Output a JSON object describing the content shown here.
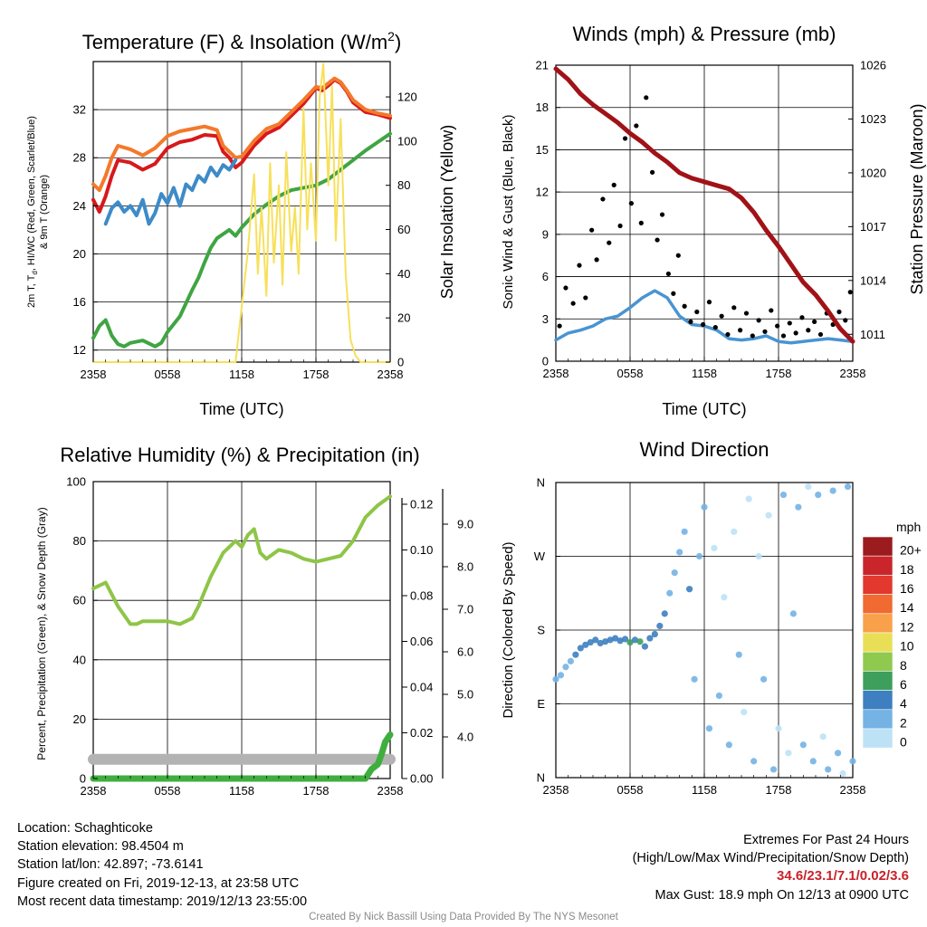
{
  "panels": {
    "temperature": {
      "title": "Temperature (F) & Insolation (W/m",
      "title_sup": "2",
      "title_close": ")",
      "ylabel_lines": [
        "2m T, T",
        "d",
        ", HI/WC (Red, Green, Scarlet/Blue)",
        "& 9m T (Orange)"
      ],
      "y2label": "Solar Insolation (Yellow)",
      "xlabel": "Time (UTC)"
    },
    "winds": {
      "title": "Winds (mph) & Pressure (mb)",
      "ylabel": "Sonic Wind & Gust (Blue, Black)",
      "y2label": "Station Pressure (Maroon)",
      "xlabel": "Time (UTC)"
    },
    "humidity": {
      "title": "Relative Humidity (%) & Precipitation (in)",
      "ylabel": "Percent, Precipitation (Green), & Snow Depth (Gray)"
    },
    "direction": {
      "title": "Wind Direction",
      "ylabel": "Direction (Colored By Speed)",
      "colorbar_title": "mph"
    }
  },
  "colors": {
    "temp_2m": "#d7191c",
    "temp_9m": "#f4792b",
    "dewpoint": "#3fa542",
    "windchill": "#3d8bc8",
    "insolation": "#f7e05a",
    "wind": "#4a94d2",
    "gust": "#000000",
    "pressure": "#a11217",
    "rh": "#8ec547",
    "precip": "#3fae3f",
    "snow": "#b3b3b3"
  },
  "chart_data": [
    {
      "type": "line",
      "id": "temperature",
      "x_ticks": [
        "2358",
        "0558",
        "1158",
        "1758",
        "2358"
      ],
      "x_hours": [
        0,
        24
      ],
      "ylim": [
        11,
        36
      ],
      "y_ticks": [
        12,
        16,
        20,
        24,
        28,
        32
      ],
      "y2lim": [
        0,
        136
      ],
      "y2_ticks": [
        0,
        20,
        40,
        60,
        80,
        100,
        120
      ],
      "series": [
        {
          "key": "temp_2m",
          "axis": "y",
          "x": [
            0,
            0.5,
            1,
            1.5,
            2,
            3,
            4,
            5,
            6,
            7,
            8,
            9,
            10,
            10.5,
            11,
            11.5,
            12,
            13,
            14,
            15,
            16,
            17,
            18,
            18.5,
            19,
            19.5,
            20,
            20.5,
            21,
            22,
            23,
            24
          ],
          "y": [
            24.5,
            23.5,
            24.8,
            26.5,
            27.8,
            27.6,
            27.0,
            27.5,
            28.8,
            29.3,
            29.5,
            29.9,
            29.8,
            28.5,
            28.0,
            27.2,
            27.6,
            29.0,
            30.0,
            30.5,
            31.5,
            32.5,
            33.8,
            33.6,
            34.0,
            34.5,
            34.2,
            33.5,
            32.6,
            31.8,
            31.6,
            31.3
          ]
        },
        {
          "key": "temp_9m",
          "axis": "y",
          "x": [
            0,
            0.5,
            1,
            1.5,
            2,
            3,
            4,
            5,
            6,
            7,
            8,
            9,
            10,
            10.5,
            11,
            11.5,
            12,
            13,
            14,
            15,
            16,
            17,
            18,
            18.5,
            19,
            19.5,
            20,
            20.5,
            21,
            22,
            23,
            24
          ],
          "y": [
            25.8,
            25.3,
            26.5,
            28.0,
            29.0,
            28.7,
            28.2,
            28.8,
            29.8,
            30.2,
            30.4,
            30.6,
            30.3,
            29.0,
            28.5,
            28.0,
            28.1,
            29.4,
            30.4,
            30.8,
            31.8,
            32.8,
            33.9,
            33.8,
            34.2,
            34.6,
            34.3,
            33.6,
            32.8,
            32.0,
            31.7,
            31.5
          ]
        },
        {
          "key": "dewpoint",
          "axis": "y",
          "x": [
            0,
            0.5,
            1,
            1.5,
            2,
            2.5,
            3,
            4,
            5,
            5.5,
            6,
            7,
            8,
            8.5,
            9,
            9.5,
            10,
            11,
            11.5,
            12,
            13,
            14,
            15,
            16,
            17,
            18,
            19,
            20,
            21,
            22,
            23,
            24
          ],
          "y": [
            13.0,
            14.0,
            14.5,
            13.2,
            12.5,
            12.3,
            12.6,
            12.8,
            12.3,
            12.6,
            13.5,
            14.8,
            17.0,
            18.0,
            19.3,
            20.5,
            21.3,
            22.0,
            21.5,
            22.2,
            23.3,
            24.1,
            24.8,
            25.3,
            25.5,
            25.7,
            26.2,
            27.0,
            27.8,
            28.6,
            29.3,
            30.0
          ]
        },
        {
          "key": "windchill",
          "axis": "y",
          "x": [
            1,
            1.5,
            2,
            2.5,
            3,
            3.5,
            4,
            4.5,
            5,
            5.5,
            6,
            6.5,
            7,
            7.5,
            8,
            8.5,
            9,
            9.5,
            10,
            10.5,
            11,
            11.5
          ],
          "y": [
            22.5,
            23.8,
            24.3,
            23.5,
            24.0,
            23.2,
            24.5,
            22.5,
            23.4,
            25.0,
            24.2,
            25.5,
            24.0,
            25.8,
            25.3,
            26.5,
            26.0,
            27.2,
            26.5,
            27.4,
            27.0,
            27.8
          ]
        },
        {
          "key": "insolation",
          "axis": "y2",
          "x": [
            0,
            11.5,
            12,
            12.5,
            13,
            13.3,
            13.6,
            14,
            14.3,
            14.6,
            15,
            15.3,
            15.6,
            16,
            16.3,
            16.6,
            17,
            17.3,
            17.6,
            18,
            18.3,
            18.6,
            19,
            19.3,
            19.6,
            20,
            20.4,
            20.8,
            21.2,
            21.6,
            22,
            24
          ],
          "y": [
            0,
            0,
            25,
            50,
            85,
            40,
            70,
            30,
            90,
            45,
            80,
            35,
            95,
            50,
            70,
            40,
            115,
            60,
            90,
            55,
            120,
            135,
            80,
            125,
            55,
            110,
            40,
            10,
            3,
            0,
            0,
            0
          ]
        }
      ]
    },
    {
      "type": "scatter",
      "id": "winds",
      "x_ticks": [
        "2358",
        "0558",
        "1158",
        "1758",
        "2358"
      ],
      "x_hours": [
        0,
        24
      ],
      "ylim": [
        0,
        21
      ],
      "y_ticks": [
        0,
        3,
        6,
        9,
        12,
        15,
        18,
        21
      ],
      "y2lim": [
        1009.5,
        1026
      ],
      "y2_ticks": [
        1011,
        1014,
        1017,
        1020,
        1023,
        1026
      ],
      "series": [
        {
          "key": "wind",
          "axis": "y",
          "x": [
            0,
            1,
            2,
            3,
            4,
            5,
            6,
            7,
            8,
            9,
            10,
            11,
            12,
            13,
            14,
            15,
            16,
            17,
            18,
            19,
            20,
            21,
            22,
            23,
            24
          ],
          "y": [
            1.5,
            2.0,
            2.2,
            2.5,
            3.0,
            3.2,
            3.8,
            4.5,
            5.0,
            4.5,
            3.2,
            2.6,
            2.5,
            2.2,
            1.6,
            1.5,
            1.6,
            1.8,
            1.4,
            1.3,
            1.4,
            1.5,
            1.6,
            1.5,
            1.4
          ]
        },
        {
          "key": "gust",
          "axis": "y",
          "x": [
            0.3,
            0.8,
            1.4,
            1.9,
            2.4,
            2.9,
            3.3,
            3.8,
            4.3,
            4.7,
            5.2,
            5.6,
            6.1,
            6.5,
            6.9,
            7.3,
            7.8,
            8.2,
            8.6,
            9.1,
            9.5,
            9.9,
            10.4,
            10.9,
            11.4,
            11.9,
            12.4,
            12.9,
            13.4,
            13.9,
            14.4,
            14.9,
            15.4,
            15.9,
            16.4,
            16.9,
            17.4,
            17.9,
            18.4,
            18.9,
            19.4,
            19.9,
            20.4,
            20.9,
            21.4,
            21.9,
            22.4,
            22.9,
            23.4,
            23.8
          ],
          "y": [
            2.5,
            5.2,
            4.1,
            6.8,
            4.5,
            9.3,
            7.2,
            11.5,
            8.4,
            12.5,
            9.6,
            15.8,
            11.2,
            16.7,
            9.8,
            18.7,
            13.4,
            8.6,
            10.4,
            6.2,
            4.8,
            7.5,
            3.9,
            2.8,
            3.5,
            2.6,
            4.2,
            2.4,
            3.2,
            1.9,
            3.8,
            2.2,
            3.4,
            1.8,
            2.9,
            2.1,
            3.6,
            2.5,
            1.8,
            2.7,
            2.0,
            3.1,
            2.2,
            2.8,
            1.9,
            3.4,
            2.6,
            3.5,
            2.9,
            4.9
          ]
        },
        {
          "key": "pressure",
          "axis": "y2",
          "x": [
            0,
            1,
            2,
            3,
            4,
            5,
            6,
            7,
            8,
            9,
            10,
            11,
            12,
            13,
            14,
            15,
            16,
            17,
            18,
            19,
            20,
            21,
            22,
            23,
            24
          ],
          "y": [
            1025.8,
            1025.2,
            1024.4,
            1023.8,
            1023.3,
            1022.8,
            1022.2,
            1021.7,
            1021.1,
            1020.6,
            1020.0,
            1019.7,
            1019.5,
            1019.3,
            1019.1,
            1018.6,
            1017.8,
            1016.8,
            1015.9,
            1014.9,
            1013.9,
            1013.2,
            1012.3,
            1011.3,
            1010.6
          ]
        }
      ]
    },
    {
      "type": "line",
      "id": "humidity",
      "x_ticks": [
        "2358",
        "0558",
        "1158",
        "1758",
        "2358"
      ],
      "x_hours": [
        0,
        24
      ],
      "ylim": [
        0,
        100
      ],
      "y_ticks": [
        0,
        20,
        40,
        60,
        80,
        100
      ],
      "y2_ticks": [
        "0.00",
        "0.02",
        "0.04",
        "0.06",
        "0.08",
        "0.10",
        "0.12"
      ],
      "y3_ticks": [
        "4.0",
        "5.0",
        "6.0",
        "7.0",
        "8.0",
        "9.0"
      ],
      "series": [
        {
          "key": "rh",
          "axis": "y",
          "x": [
            0,
            0.5,
            1,
            1.5,
            2,
            2.5,
            3,
            3.5,
            4,
            5,
            6,
            7,
            8,
            8.5,
            9,
            9.5,
            10,
            10.5,
            11,
            11.5,
            12,
            12.5,
            13,
            13.5,
            14,
            15,
            16,
            17,
            18,
            19,
            20,
            21,
            22,
            23,
            24
          ],
          "y": [
            64,
            65,
            66,
            62,
            58,
            55,
            52,
            52,
            53,
            53,
            53,
            52,
            54,
            58,
            63,
            68,
            72,
            76,
            78,
            80,
            78,
            82,
            84,
            76,
            74,
            77,
            76,
            74,
            73,
            74,
            75,
            80,
            88,
            92,
            95
          ]
        },
        {
          "key": "snow",
          "axis": "y",
          "x": [
            0,
            2,
            4,
            6,
            8,
            10,
            12,
            14,
            16,
            18,
            20,
            21,
            22,
            23,
            24
          ],
          "y": [
            6.5,
            6.5,
            6.5,
            6.5,
            6.5,
            6.5,
            6.5,
            6.5,
            6.5,
            6.5,
            6.5,
            6.5,
            6.5,
            6.5,
            6.5
          ]
        },
        {
          "key": "precip",
          "axis": "y",
          "x": [
            0,
            18,
            20,
            21,
            21.5,
            22,
            22.5,
            23,
            23.3,
            23.6,
            24
          ],
          "y": [
            0,
            0,
            0,
            0,
            0,
            0,
            3.2,
            4.8,
            8.1,
            12.3,
            14.8
          ]
        }
      ]
    },
    {
      "type": "scatter",
      "id": "direction",
      "x_ticks": [
        "2358",
        "0558",
        "1158",
        "1758",
        "2358"
      ],
      "x_hours": [
        0,
        24
      ],
      "y_ticks": [
        "N",
        "E",
        "S",
        "W",
        "N"
      ],
      "ylim": [
        0,
        360
      ],
      "colorbar": {
        "labels": [
          "20+",
          "18",
          "16",
          "14",
          "12",
          "10",
          "8",
          "6",
          "4",
          "2",
          "0"
        ],
        "colors": [
          "#9b1b1e",
          "#c9252a",
          "#e2382d",
          "#f06a31",
          "#f8a04a",
          "#e9df56",
          "#8fc94e",
          "#3d9f5b",
          "#3d7fc0",
          "#74b3e4",
          "#bde2f6"
        ]
      },
      "series": [
        {
          "key": "direction",
          "x": [
            0,
            0.4,
            0.8,
            1.2,
            1.6,
            2,
            2.4,
            2.8,
            3.2,
            3.6,
            4,
            4.4,
            4.8,
            5.2,
            5.6,
            6,
            6.4,
            6.8,
            7.2,
            7.6,
            8,
            8.4,
            8.8,
            9.2,
            9.6,
            10,
            10.4,
            10.8,
            11.2,
            11.6,
            12,
            12.4,
            12.8,
            13.2,
            13.6,
            14,
            14.4,
            14.8,
            15.2,
            15.6,
            16,
            16.4,
            16.8,
            17.2,
            17.6,
            18,
            18.4,
            18.8,
            19.2,
            19.6,
            20,
            20.4,
            20.8,
            21.2,
            21.6,
            22,
            22.4,
            22.8,
            23.2,
            23.6,
            24
          ],
          "y": [
            120,
            125,
            135,
            142,
            150,
            158,
            162,
            165,
            168,
            164,
            166,
            168,
            170,
            167,
            169,
            165,
            168,
            166,
            160,
            170,
            175,
            185,
            200,
            225,
            250,
            275,
            300,
            230,
            120,
            270,
            330,
            60,
            280,
            100,
            220,
            40,
            300,
            150,
            80,
            340,
            20,
            270,
            120,
            320,
            10,
            60,
            345,
            30,
            200,
            330,
            40,
            355,
            20,
            345,
            50,
            10,
            350,
            30,
            5,
            355,
            20
          ],
          "speed": [
            1,
            1.5,
            2,
            2.5,
            3,
            3.2,
            3.5,
            3.8,
            4,
            4.2,
            4.5,
            4.4,
            4.2,
            4.6,
            4.8,
            5,
            4.5,
            6,
            4.2,
            3.8,
            3.5,
            3.2,
            3,
            2.8,
            2.5,
            2,
            1.5,
            3,
            1,
            2.5,
            1.2,
            1,
            0.8,
            1.5,
            0.5,
            2,
            0.7,
            1.2,
            0.5,
            0.6,
            1.8,
            0.4,
            2.4,
            0.8,
            1.5,
            0.5,
            1.2,
            0.9,
            2.5,
            1.1,
            1.6,
            0.8,
            1.4,
            2,
            0.6,
            1.5,
            1.2,
            2.8,
            0.5,
            1.4,
            2
          ]
        }
      ]
    }
  ],
  "info": {
    "location": "Location: Schaghticoke",
    "elevation": "Station elevation: 98.4504 m",
    "latlon": "Station lat/lon: 42.897; -73.6141",
    "created": "Figure created on Fri, 2019-12-13, at 23:58 UTC",
    "recent": "Most recent data timestamp: 2019/12/13 23:55:00"
  },
  "extremes": {
    "title": "Extremes For Past 24 Hours",
    "subtitle": "(High/Low/Max Wind/Precipitation/Snow Depth)",
    "values": "34.6/23.1/7.1/0.02/3.6",
    "gust": "Max Gust: 18.9 mph On 12/13 at 0900 UTC"
  },
  "credit": "Created By Nick Bassill Using Data Provided By The NYS Mesonet"
}
